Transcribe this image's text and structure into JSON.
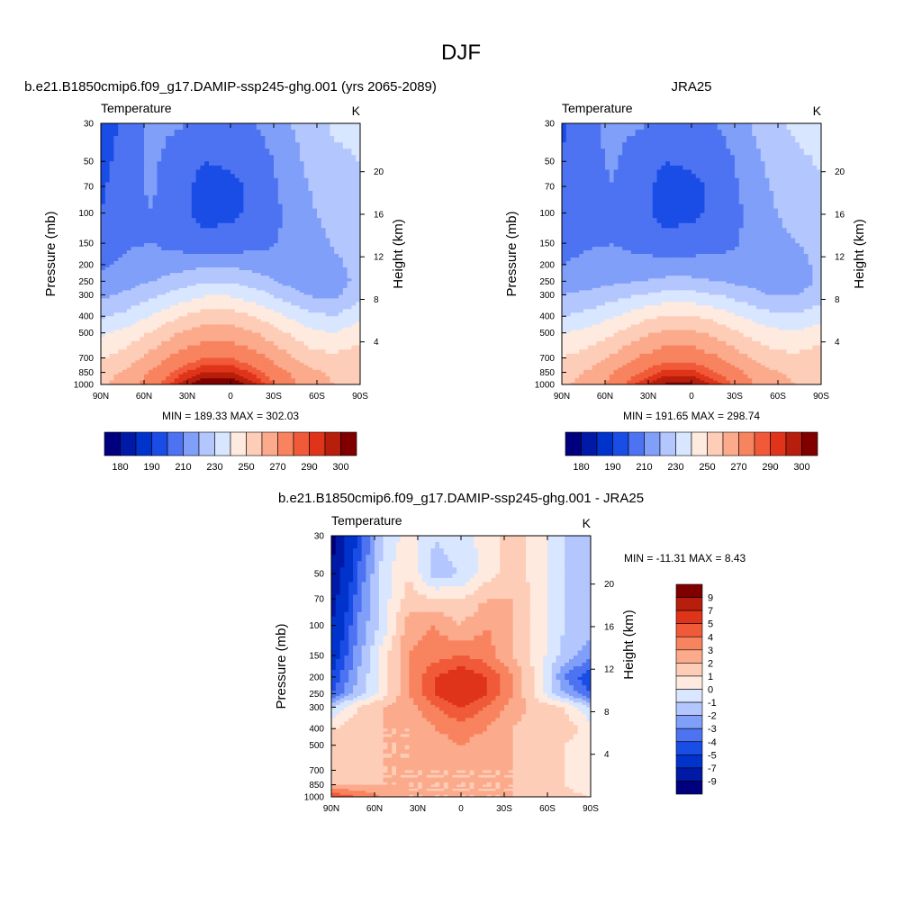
{
  "figure_title": "DJF",
  "colors": {
    "abs": [
      "#00007f",
      "#0019a6",
      "#0033cc",
      "#1a4ce6",
      "#4d73f2",
      "#809ff9",
      "#b3c6fd",
      "#d9e6ff",
      "#ffeadf",
      "#fdcdb8",
      "#fcaa8c",
      "#f8835f",
      "#f15a38",
      "#e0341a",
      "#b71e0b",
      "#800000"
    ],
    "diff": [
      "#00007f",
      "#0019a6",
      "#0033cc",
      "#1a4ce6",
      "#4d73f2",
      "#809ff9",
      "#b3c6fd",
      "#d9e6ff",
      "#ffeadf",
      "#fdcdb8",
      "#fcaa8c",
      "#f8835f",
      "#f15a38",
      "#e0341a",
      "#b71e0b",
      "#800000"
    ]
  },
  "panels": [
    {
      "title": "b.e21.B1850cmip6.f09_g17.DAMIP-ssp245-ghg.001 (yrs 2065-2089)",
      "left_label": "Temperature",
      "right_label": "K",
      "stats": "MIN = 189.33  MAX = 302.03",
      "min": 189.33,
      "max": 302.03
    },
    {
      "title": "JRA25",
      "left_label": "Temperature",
      "right_label": "K",
      "stats": "MIN = 191.65  MAX = 298.74",
      "min": 191.65,
      "max": 298.74
    },
    {
      "title": "b.e21.B1850cmip6.f09_g17.DAMIP-ssp245-ghg.001 - JRA25",
      "left_label": "Temperature",
      "right_label": "K",
      "stats": "MIN = -11.31  MAX =   8.43",
      "min": -11.31,
      "max": 8.43
    }
  ],
  "axes": {
    "ylabel": "Pressure (mb)",
    "y2label": "Height (km)",
    "x_ticks": [
      "90N",
      "60N",
      "30N",
      "0",
      "30S",
      "60S",
      "90S"
    ],
    "y_ticks": [
      30,
      50,
      70,
      100,
      150,
      200,
      250,
      300,
      400,
      500,
      700,
      850,
      1000
    ],
    "height_ticks": [
      4,
      8,
      12,
      16,
      20
    ],
    "y_scale": "log",
    "ylim": [
      1000,
      30
    ]
  },
  "colorbars": {
    "abs_labels": [
      "180",
      "190",
      "210",
      "230",
      "250",
      "270",
      "290",
      "300"
    ],
    "diff_labels": [
      "9",
      "7",
      "5",
      "4",
      "3",
      "2",
      "1",
      "0",
      "-1",
      "-2",
      "-3",
      "-4",
      "-5",
      "-7",
      "-9"
    ]
  },
  "chart_data": [
    {
      "type": "heatmap",
      "title": "b.e21.B1850cmip6.f09_g17.DAMIP-ssp245-ghg.001 (yrs 2065-2089)",
      "xlabel": "",
      "ylabel": "Pressure (mb)",
      "y2label": "Height (km)",
      "x_categories": [
        "90N",
        "60N",
        "30N",
        "0",
        "30S",
        "60S",
        "90S"
      ],
      "y_pressure": [
        30,
        50,
        70,
        100,
        150,
        200,
        250,
        300,
        400,
        500,
        700,
        850,
        1000
      ],
      "units": "K",
      "min": 189.33,
      "max": 302.03,
      "contour_levels": [
        180,
        185,
        190,
        200,
        210,
        220,
        230,
        240,
        250,
        260,
        270,
        280,
        285,
        290,
        295,
        300
      ],
      "approx_values": [
        [
          190,
          205,
          213,
          211,
          208,
          205,
          210,
          218,
          225,
          232,
          232
        ],
        [
          195,
          207,
          212,
          204,
          200,
          201,
          204,
          213,
          222,
          228,
          230
        ],
        [
          198,
          208,
          211,
          203,
          197,
          198,
          202,
          212,
          220,
          226,
          229
        ],
        [
          200,
          208,
          210,
          203,
          197,
          198,
          202,
          210,
          218,
          224,
          226
        ],
        [
          205,
          209,
          210,
          206,
          203,
          204,
          206,
          211,
          216,
          221,
          222
        ],
        [
          208,
          212,
          214,
          216,
          218,
          218,
          216,
          212,
          212,
          218,
          224
        ],
        [
          213,
          216,
          220,
          225,
          229,
          229,
          225,
          218,
          213,
          214,
          224
        ],
        [
          218,
          222,
          228,
          234,
          239,
          239,
          234,
          227,
          219,
          218,
          227
        ],
        [
          228,
          233,
          241,
          249,
          255,
          255,
          249,
          241,
          233,
          230,
          237
        ],
        [
          238,
          243,
          251,
          260,
          265,
          265,
          260,
          251,
          243,
          240,
          246
        ],
        [
          249,
          255,
          264,
          274,
          280,
          280,
          274,
          264,
          255,
          252,
          256
        ],
        [
          256,
          262,
          272,
          283,
          290,
          290,
          283,
          272,
          263,
          258,
          260
        ],
        [
          258,
          265,
          276,
          290,
          300,
          300,
          290,
          276,
          265,
          260,
          260
        ]
      ]
    },
    {
      "type": "heatmap",
      "title": "JRA25",
      "xlabel": "",
      "ylabel": "Pressure (mb)",
      "y2label": "Height (km)",
      "x_categories": [
        "90N",
        "60N",
        "30N",
        "0",
        "30S",
        "60S",
        "90S"
      ],
      "y_pressure": [
        30,
        50,
        70,
        100,
        150,
        200,
        250,
        300,
        400,
        500,
        700,
        850,
        1000
      ],
      "units": "K",
      "min": 191.65,
      "max": 298.74,
      "contour_levels": [
        180,
        185,
        190,
        200,
        210,
        220,
        230,
        240,
        250,
        260,
        270,
        280,
        285,
        290,
        295,
        300
      ],
      "approx_values": [
        [
          198,
          207,
          213,
          211,
          208,
          206,
          210,
          218,
          226,
          232,
          233
        ],
        [
          201,
          208,
          211,
          204,
          200,
          201,
          204,
          213,
          222,
          228,
          231
        ],
        [
          203,
          208,
          210,
          203,
          197,
          198,
          202,
          212,
          220,
          226,
          229
        ],
        [
          204,
          208,
          210,
          203,
          197,
          198,
          202,
          210,
          218,
          224,
          226
        ],
        [
          207,
          209,
          210,
          206,
          203,
          204,
          206,
          211,
          216,
          220,
          222
        ],
        [
          210,
          212,
          213,
          214,
          214,
          214,
          214,
          212,
          213,
          217,
          222
        ],
        [
          215,
          216,
          218,
          220,
          222,
          222,
          220,
          217,
          215,
          214,
          222
        ],
        [
          220,
          222,
          226,
          230,
          233,
          233,
          230,
          225,
          220,
          219,
          226
        ],
        [
          230,
          233,
          239,
          246,
          251,
          251,
          246,
          239,
          233,
          231,
          236
        ],
        [
          240,
          243,
          249,
          257,
          262,
          262,
          257,
          249,
          243,
          241,
          246
        ],
        [
          250,
          254,
          262,
          271,
          277,
          277,
          271,
          262,
          255,
          252,
          256
        ],
        [
          256,
          261,
          270,
          280,
          287,
          287,
          280,
          270,
          262,
          258,
          259
        ],
        [
          258,
          264,
          274,
          287,
          296,
          296,
          287,
          274,
          264,
          260,
          260
        ]
      ]
    },
    {
      "type": "heatmap",
      "title": "b.e21.B1850cmip6.f09_g17.DAMIP-ssp245-ghg.001 - JRA25",
      "xlabel": "",
      "ylabel": "Pressure (mb)",
      "y2label": "Height (km)",
      "x_categories": [
        "90N",
        "60N",
        "30N",
        "0",
        "30S",
        "60S",
        "90S"
      ],
      "y_pressure": [
        30,
        50,
        70,
        100,
        150,
        200,
        250,
        300,
        400,
        500,
        700,
        850,
        1000
      ],
      "units": "K",
      "min": -11.31,
      "max": 8.43,
      "contour_levels": [
        -9,
        -7,
        -5,
        -4,
        -3,
        -2,
        -1,
        0,
        1,
        2,
        3,
        4,
        5,
        7,
        9
      ],
      "approx_values": [
        [
          -10,
          -5,
          -1,
          0.5,
          -1,
          -0.5,
          0.5,
          1.5,
          0.5,
          -1,
          -2
        ],
        [
          -9,
          -4,
          -0.5,
          1,
          -1.5,
          -1,
          0.5,
          1.5,
          0.5,
          -1,
          -2
        ],
        [
          -8,
          -3.5,
          -0.5,
          1.5,
          1,
          1,
          2,
          2,
          0.5,
          -1,
          -2
        ],
        [
          -7,
          -3,
          -0.5,
          2.5,
          3,
          2,
          3,
          2,
          0.5,
          -1,
          -1.5
        ],
        [
          -6,
          -2.5,
          0.5,
          3,
          3.5,
          4,
          3.5,
          2,
          0.5,
          -1.5,
          -2.5
        ],
        [
          -5,
          -2,
          0.5,
          3,
          5,
          6,
          5,
          3,
          0.5,
          -3,
          -5
        ],
        [
          -4,
          -1.5,
          0.5,
          3,
          5,
          6.5,
          5,
          3,
          0.5,
          -2,
          -4
        ],
        [
          -1,
          1,
          2,
          2.5,
          4,
          5,
          4,
          2.5,
          1.5,
          1,
          -1
        ],
        [
          1,
          1.5,
          2,
          2,
          3,
          3.5,
          3,
          2,
          1.5,
          1.5,
          0.5
        ],
        [
          1.5,
          1.5,
          2,
          2,
          2.5,
          3,
          2.5,
          2,
          1.5,
          1,
          0.5
        ],
        [
          1.5,
          1.5,
          2,
          2,
          2,
          2,
          2,
          2,
          1.5,
          1,
          0
        ],
        [
          2,
          2,
          2,
          2,
          2,
          2,
          2,
          2,
          1.5,
          1,
          0
        ],
        [
          5,
          4,
          3,
          2,
          2,
          2,
          2,
          2,
          2,
          1.5,
          1
        ]
      ]
    }
  ]
}
